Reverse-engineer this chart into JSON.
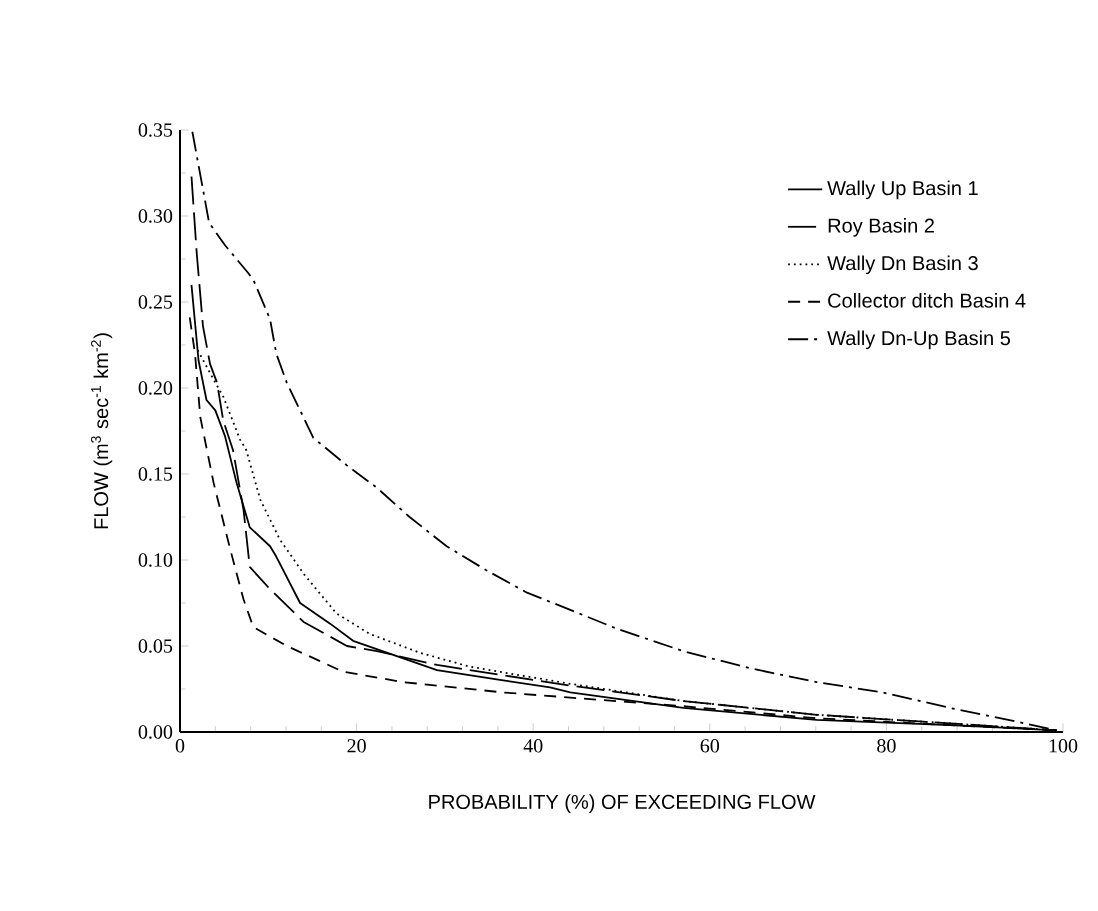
{
  "chart_data": {
    "type": "line",
    "xlabel": "PROBABILITY (%) OF EXCEEDING FLOW",
    "ylabel": "FLOW (m$^{3}$ sec$^{-1}$ km$^{-2}$)",
    "xlim": [
      0,
      100
    ],
    "ylim": [
      0,
      0.35
    ],
    "xticks": [
      0,
      20,
      40,
      60,
      80,
      100
    ],
    "yticks": [
      {
        "value": 0,
        "label": "0.00"
      },
      {
        "value": 0.05,
        "label": "0.05"
      },
      {
        "value": 0.1,
        "label": "0.10"
      },
      {
        "value": 0.15,
        "label": "0.15"
      },
      {
        "value": 0.2,
        "label": "0.20"
      },
      {
        "value": 0.25,
        "label": "0.25"
      },
      {
        "value": 0.3,
        "label": "0.30"
      },
      {
        "value": 0.35,
        "label": "0.35"
      }
    ],
    "grid": false,
    "legend": "top right",
    "marker": "none",
    "series": [
      {
        "name": "Wally Up Basin 1",
        "color": "#000000",
        "line_style": "solid",
        "x": [
          1.3,
          2.1,
          3.0,
          4.0,
          5.1,
          6.4,
          7.9,
          10.2,
          10.9,
          13.6,
          17.0,
          19.6,
          29.1,
          36.6,
          41.9,
          44.2,
          57.0,
          72.1,
          87.2,
          99.3
        ],
        "values": [
          0.26,
          0.216,
          0.193,
          0.187,
          0.172,
          0.145,
          0.119,
          0.108,
          0.102,
          0.075,
          0.063,
          0.053,
          0.036,
          0.03,
          0.026,
          0.023,
          0.014,
          0.007,
          0.004,
          0.001
        ]
      },
      {
        "name": "Roy Basin 2",
        "color": "#000000",
        "line_style": "longdashed",
        "x": [
          1.3,
          1.9,
          2.6,
          3.4,
          4.2,
          4.9,
          6.0,
          7.2,
          7.9,
          10.2,
          14.0,
          18.9,
          22.3,
          29.1,
          36.6,
          44.2,
          57.0,
          72.1,
          87.2,
          99.3
        ],
        "values": [
          0.323,
          0.278,
          0.236,
          0.214,
          0.203,
          0.181,
          0.164,
          0.129,
          0.096,
          0.083,
          0.064,
          0.05,
          0.047,
          0.039,
          0.033,
          0.027,
          0.018,
          0.01,
          0.005,
          0.001
        ]
      },
      {
        "name": "Wally Dn Basin 3",
        "color": "#000000",
        "line_style": "dotted",
        "x": [
          2.0,
          3.8,
          4.9,
          6.8,
          7.5,
          9.1,
          11.3,
          14.0,
          17.7,
          21.5,
          27.2,
          32.8,
          44.2,
          57.0,
          72.1,
          87.2,
          99.3
        ],
        "values": [
          0.222,
          0.205,
          0.195,
          0.17,
          0.164,
          0.135,
          0.112,
          0.092,
          0.069,
          0.057,
          0.046,
          0.038,
          0.028,
          0.018,
          0.01,
          0.005,
          0.001
        ]
      },
      {
        "name": "Collector ditch Basin 4",
        "color": "#000000",
        "line_style": "dashed",
        "x": [
          1.1,
          1.7,
          2.3,
          3.8,
          5.7,
          7.2,
          8.3,
          12.1,
          18.5,
          25.3,
          36.6,
          44.2,
          57.0,
          72.1,
          87.2,
          99.3
        ],
        "values": [
          0.241,
          0.22,
          0.183,
          0.145,
          0.106,
          0.077,
          0.061,
          0.05,
          0.035,
          0.029,
          0.023,
          0.02,
          0.015,
          0.008,
          0.004,
          0.001
        ]
      },
      {
        "name": "Wally Dn-Up Basin 5",
        "color": "#000000",
        "line_style": "dashdot",
        "x": [
          1.4,
          3.3,
          5.1,
          7.7,
          8.3,
          10.2,
          10.9,
          12.1,
          15.1,
          18.9,
          22.3,
          26.0,
          30.2,
          34.7,
          39.3,
          44.2,
          49.5,
          57.0,
          64.6,
          72.1,
          79.6,
          87.2,
          94.8,
          99.3
        ],
        "values": [
          0.349,
          0.296,
          0.283,
          0.267,
          0.263,
          0.24,
          0.22,
          0.203,
          0.171,
          0.155,
          0.142,
          0.125,
          0.108,
          0.094,
          0.081,
          0.071,
          0.06,
          0.047,
          0.037,
          0.029,
          0.023,
          0.014,
          0.006,
          0.001
        ]
      }
    ]
  }
}
